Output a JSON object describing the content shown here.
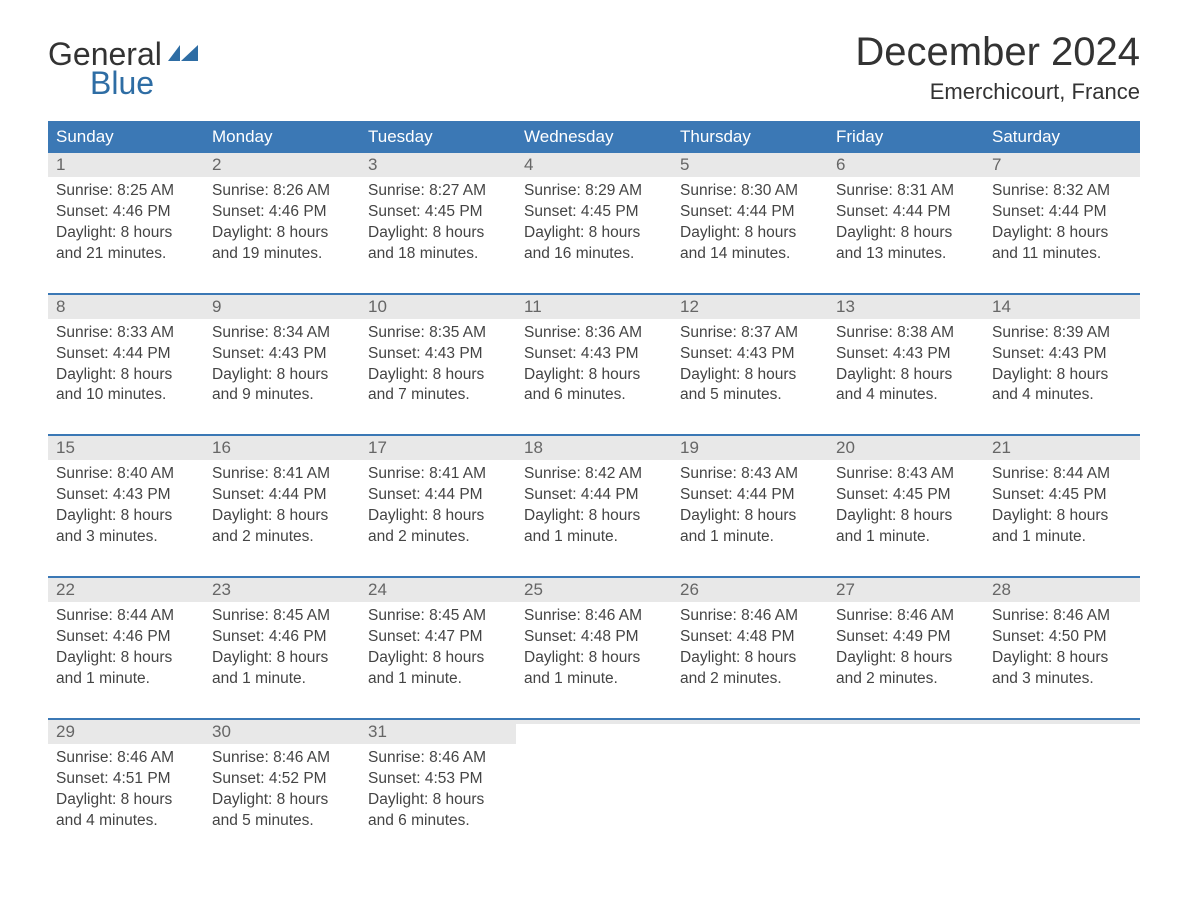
{
  "logo": {
    "text_general": "General",
    "text_blue": "Blue",
    "icon_color": "#2e6da4"
  },
  "title": "December 2024",
  "location": "Emerchicourt, France",
  "colors": {
    "header_bg": "#3b78b5",
    "header_text": "#ffffff",
    "daynum_bg": "#e8e8e8",
    "daynum_text": "#666666",
    "body_text": "#444444",
    "week_border": "#3b78b5",
    "background": "#ffffff"
  },
  "weekdays": [
    "Sunday",
    "Monday",
    "Tuesday",
    "Wednesday",
    "Thursday",
    "Friday",
    "Saturday"
  ],
  "weeks": [
    [
      {
        "day": "1",
        "sunrise": "Sunrise: 8:25 AM",
        "sunset": "Sunset: 4:46 PM",
        "d1": "Daylight: 8 hours",
        "d2": "and 21 minutes."
      },
      {
        "day": "2",
        "sunrise": "Sunrise: 8:26 AM",
        "sunset": "Sunset: 4:46 PM",
        "d1": "Daylight: 8 hours",
        "d2": "and 19 minutes."
      },
      {
        "day": "3",
        "sunrise": "Sunrise: 8:27 AM",
        "sunset": "Sunset: 4:45 PM",
        "d1": "Daylight: 8 hours",
        "d2": "and 18 minutes."
      },
      {
        "day": "4",
        "sunrise": "Sunrise: 8:29 AM",
        "sunset": "Sunset: 4:45 PM",
        "d1": "Daylight: 8 hours",
        "d2": "and 16 minutes."
      },
      {
        "day": "5",
        "sunrise": "Sunrise: 8:30 AM",
        "sunset": "Sunset: 4:44 PM",
        "d1": "Daylight: 8 hours",
        "d2": "and 14 minutes."
      },
      {
        "day": "6",
        "sunrise": "Sunrise: 8:31 AM",
        "sunset": "Sunset: 4:44 PM",
        "d1": "Daylight: 8 hours",
        "d2": "and 13 minutes."
      },
      {
        "day": "7",
        "sunrise": "Sunrise: 8:32 AM",
        "sunset": "Sunset: 4:44 PM",
        "d1": "Daylight: 8 hours",
        "d2": "and 11 minutes."
      }
    ],
    [
      {
        "day": "8",
        "sunrise": "Sunrise: 8:33 AM",
        "sunset": "Sunset: 4:44 PM",
        "d1": "Daylight: 8 hours",
        "d2": "and 10 minutes."
      },
      {
        "day": "9",
        "sunrise": "Sunrise: 8:34 AM",
        "sunset": "Sunset: 4:43 PM",
        "d1": "Daylight: 8 hours",
        "d2": "and 9 minutes."
      },
      {
        "day": "10",
        "sunrise": "Sunrise: 8:35 AM",
        "sunset": "Sunset: 4:43 PM",
        "d1": "Daylight: 8 hours",
        "d2": "and 7 minutes."
      },
      {
        "day": "11",
        "sunrise": "Sunrise: 8:36 AM",
        "sunset": "Sunset: 4:43 PM",
        "d1": "Daylight: 8 hours",
        "d2": "and 6 minutes."
      },
      {
        "day": "12",
        "sunrise": "Sunrise: 8:37 AM",
        "sunset": "Sunset: 4:43 PM",
        "d1": "Daylight: 8 hours",
        "d2": "and 5 minutes."
      },
      {
        "day": "13",
        "sunrise": "Sunrise: 8:38 AM",
        "sunset": "Sunset: 4:43 PM",
        "d1": "Daylight: 8 hours",
        "d2": "and 4 minutes."
      },
      {
        "day": "14",
        "sunrise": "Sunrise: 8:39 AM",
        "sunset": "Sunset: 4:43 PM",
        "d1": "Daylight: 8 hours",
        "d2": "and 4 minutes."
      }
    ],
    [
      {
        "day": "15",
        "sunrise": "Sunrise: 8:40 AM",
        "sunset": "Sunset: 4:43 PM",
        "d1": "Daylight: 8 hours",
        "d2": "and 3 minutes."
      },
      {
        "day": "16",
        "sunrise": "Sunrise: 8:41 AM",
        "sunset": "Sunset: 4:44 PM",
        "d1": "Daylight: 8 hours",
        "d2": "and 2 minutes."
      },
      {
        "day": "17",
        "sunrise": "Sunrise: 8:41 AM",
        "sunset": "Sunset: 4:44 PM",
        "d1": "Daylight: 8 hours",
        "d2": "and 2 minutes."
      },
      {
        "day": "18",
        "sunrise": "Sunrise: 8:42 AM",
        "sunset": "Sunset: 4:44 PM",
        "d1": "Daylight: 8 hours",
        "d2": "and 1 minute."
      },
      {
        "day": "19",
        "sunrise": "Sunrise: 8:43 AM",
        "sunset": "Sunset: 4:44 PM",
        "d1": "Daylight: 8 hours",
        "d2": "and 1 minute."
      },
      {
        "day": "20",
        "sunrise": "Sunrise: 8:43 AM",
        "sunset": "Sunset: 4:45 PM",
        "d1": "Daylight: 8 hours",
        "d2": "and 1 minute."
      },
      {
        "day": "21",
        "sunrise": "Sunrise: 8:44 AM",
        "sunset": "Sunset: 4:45 PM",
        "d1": "Daylight: 8 hours",
        "d2": "and 1 minute."
      }
    ],
    [
      {
        "day": "22",
        "sunrise": "Sunrise: 8:44 AM",
        "sunset": "Sunset: 4:46 PM",
        "d1": "Daylight: 8 hours",
        "d2": "and 1 minute."
      },
      {
        "day": "23",
        "sunrise": "Sunrise: 8:45 AM",
        "sunset": "Sunset: 4:46 PM",
        "d1": "Daylight: 8 hours",
        "d2": "and 1 minute."
      },
      {
        "day": "24",
        "sunrise": "Sunrise: 8:45 AM",
        "sunset": "Sunset: 4:47 PM",
        "d1": "Daylight: 8 hours",
        "d2": "and 1 minute."
      },
      {
        "day": "25",
        "sunrise": "Sunrise: 8:46 AM",
        "sunset": "Sunset: 4:48 PM",
        "d1": "Daylight: 8 hours",
        "d2": "and 1 minute."
      },
      {
        "day": "26",
        "sunrise": "Sunrise: 8:46 AM",
        "sunset": "Sunset: 4:48 PM",
        "d1": "Daylight: 8 hours",
        "d2": "and 2 minutes."
      },
      {
        "day": "27",
        "sunrise": "Sunrise: 8:46 AM",
        "sunset": "Sunset: 4:49 PM",
        "d1": "Daylight: 8 hours",
        "d2": "and 2 minutes."
      },
      {
        "day": "28",
        "sunrise": "Sunrise: 8:46 AM",
        "sunset": "Sunset: 4:50 PM",
        "d1": "Daylight: 8 hours",
        "d2": "and 3 minutes."
      }
    ],
    [
      {
        "day": "29",
        "sunrise": "Sunrise: 8:46 AM",
        "sunset": "Sunset: 4:51 PM",
        "d1": "Daylight: 8 hours",
        "d2": "and 4 minutes."
      },
      {
        "day": "30",
        "sunrise": "Sunrise: 8:46 AM",
        "sunset": "Sunset: 4:52 PM",
        "d1": "Daylight: 8 hours",
        "d2": "and 5 minutes."
      },
      {
        "day": "31",
        "sunrise": "Sunrise: 8:46 AM",
        "sunset": "Sunset: 4:53 PM",
        "d1": "Daylight: 8 hours",
        "d2": "and 6 minutes."
      },
      {
        "empty": true
      },
      {
        "empty": true
      },
      {
        "empty": true
      },
      {
        "empty": true
      }
    ]
  ]
}
